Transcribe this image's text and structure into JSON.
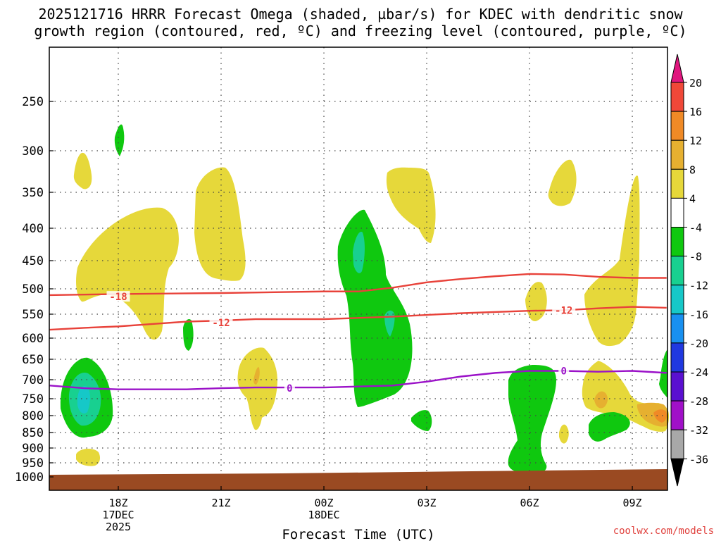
{
  "title_line1": "2025121716 HRRR Forecast Omega (shaded, µbar/s) for KDEC with dendritic snow",
  "title_line2": "growth region (contoured, red, ºC) and freezing level (contoured, purple, ºC)",
  "watermark": "coolwx.com/models",
  "chart_data": {
    "type": "heatmap",
    "xlabel": "Forecast Time (UTC)",
    "ylabel": "",
    "x_ticks": [
      {
        "label": "18Z",
        "sub": [
          "17DEC",
          "2025"
        ],
        "hours": 2
      },
      {
        "label": "21Z",
        "sub": [],
        "hours": 5
      },
      {
        "label": "00Z",
        "sub": [
          "18DEC"
        ],
        "hours": 8
      },
      {
        "label": "03Z",
        "sub": [],
        "hours": 11
      },
      {
        "label": "06Z",
        "sub": [],
        "hours": 14
      },
      {
        "label": "09Z",
        "sub": [],
        "hours": 17
      }
    ],
    "xlim_hours": [
      0,
      18
    ],
    "y_ticks": [
      250,
      300,
      350,
      400,
      450,
      500,
      550,
      600,
      650,
      700,
      750,
      800,
      850,
      900,
      950,
      1000
    ],
    "ylim_hPa": [
      200,
      1000
    ],
    "grid": true,
    "colorbar": {
      "labels": [
        "20",
        "16",
        "12",
        "8",
        "4",
        "-4",
        "-8",
        "-12",
        "-16",
        "-20",
        "-24",
        "-28",
        "-32",
        "-36"
      ],
      "colors": {
        "gt20": "#e0167e",
        "b16_20": "#f04838",
        "b12_16": "#f08a26",
        "b8_12": "#e6b030",
        "b4_8": "#e6d83a",
        "bm4_4": "#ffffff",
        "bm8_m4": "#0fc80f",
        "bm12_m8": "#18d090",
        "bm16_m12": "#16c8c8",
        "bm20_m16": "#1890f0",
        "bm24_m20": "#2038e0",
        "bm28_m24": "#5a10d0",
        "bm32_m28": "#a010c8",
        "bm36_m32": "#a8a8a8",
        "ltm36": "#000000"
      }
    },
    "shaded_regions": [
      {
        "level": "4 to 8",
        "color": "#e6d83a"
      },
      {
        "level": "8 to 12",
        "color": "#e6b030"
      },
      {
        "level": "12 to 16",
        "color": "#f08a26"
      },
      {
        "level": "-8 to -4",
        "color": "#0fc80f"
      },
      {
        "level": "-12 to -8",
        "color": "#18d090"
      },
      {
        "level": "-16 to -12",
        "color": "#16c8c8"
      }
    ],
    "contours": [
      {
        "name": "dgz_top",
        "value_C": -18,
        "color": "#e8423a",
        "points": [
          [
            0,
            512
          ],
          [
            2,
            510
          ],
          [
            5,
            508
          ],
          [
            8,
            505
          ],
          [
            9,
            505
          ],
          [
            10,
            498
          ],
          [
            11,
            488
          ],
          [
            12,
            482
          ],
          [
            13,
            477
          ],
          [
            14,
            473
          ],
          [
            15,
            474
          ],
          [
            16,
            478
          ],
          [
            17,
            480
          ],
          [
            18,
            480
          ]
        ]
      },
      {
        "name": "dgz_bottom",
        "value_C": -12,
        "color": "#e8423a",
        "points": [
          [
            0,
            582
          ],
          [
            1,
            578
          ],
          [
            2,
            575
          ],
          [
            3,
            570
          ],
          [
            4,
            565
          ],
          [
            5,
            563
          ],
          [
            6,
            560
          ],
          [
            8,
            560
          ],
          [
            10,
            555
          ],
          [
            12,
            548
          ],
          [
            14,
            543
          ],
          [
            15,
            542
          ],
          [
            16,
            538
          ],
          [
            17,
            535
          ],
          [
            18,
            537
          ]
        ]
      },
      {
        "name": "freezing_level",
        "value_C": 0,
        "color": "#9b12c8",
        "points": [
          [
            0,
            715
          ],
          [
            1,
            722
          ],
          [
            2,
            725
          ],
          [
            3,
            725
          ],
          [
            4,
            725
          ],
          [
            5,
            722
          ],
          [
            6,
            720
          ],
          [
            8,
            720
          ],
          [
            10,
            715
          ],
          [
            11,
            705
          ],
          [
            12,
            692
          ],
          [
            13,
            683
          ],
          [
            14,
            678
          ],
          [
            15,
            678
          ],
          [
            16,
            680
          ],
          [
            17,
            678
          ],
          [
            18,
            683
          ]
        ]
      }
    ],
    "contour_labels": [
      {
        "text": "-18",
        "hours": 2.0,
        "hPa": 515,
        "color": "#e8423a"
      },
      {
        "text": "-12",
        "hours": 5.0,
        "hPa": 567,
        "color": "#e8423a"
      },
      {
        "text": "-12",
        "hours": 15.0,
        "hPa": 542,
        "color": "#e8423a"
      },
      {
        "text": "0",
        "hours": 7.0,
        "hPa": 722,
        "color": "#9b12c8"
      },
      {
        "text": "0",
        "hours": 15.0,
        "hPa": 678,
        "color": "#9b12c8"
      }
    ],
    "terrain_color": "#9a4a22"
  }
}
